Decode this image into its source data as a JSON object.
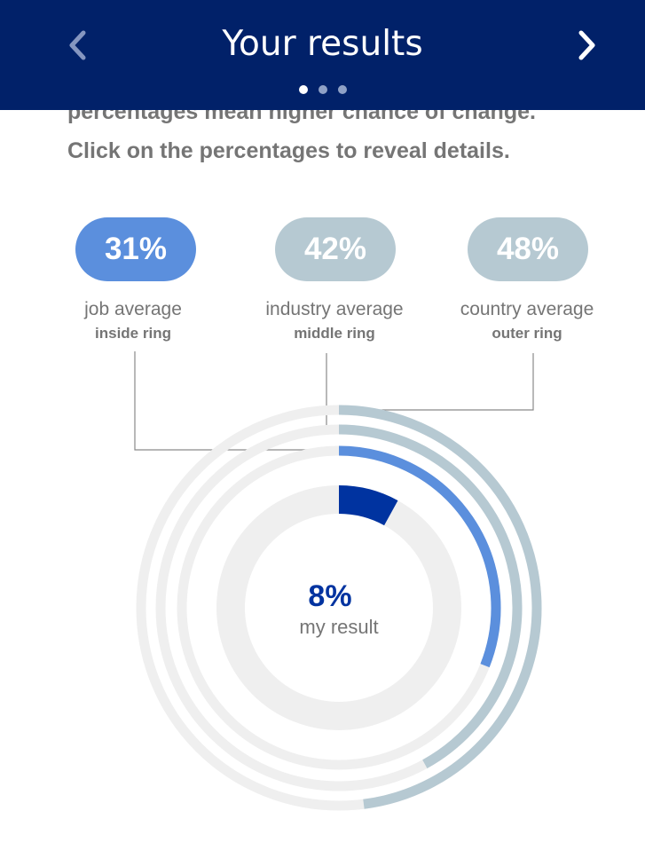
{
  "header": {
    "title": "Your results",
    "prev_icon": "chevron-left-icon",
    "next_icon": "chevron-right-icon",
    "pages": 3,
    "current_page": 1
  },
  "intro": {
    "line_partial": "percentages mean higher chance of change.",
    "line": "Click on the percentages to reveal details."
  },
  "averages": [
    {
      "value": "31%",
      "name": "job average",
      "ring": "inside ring",
      "color": "#5b8fdd"
    },
    {
      "value": "42%",
      "name": "industry average",
      "ring": "middle ring",
      "color": "#b6c9d2"
    },
    {
      "value": "48%",
      "name": "country average",
      "ring": "outer ring",
      "color": "#b6c9d2"
    }
  ],
  "result": {
    "value": "8%",
    "label": "my result",
    "color": "#0033a0"
  },
  "chart_data": {
    "type": "radial-progress",
    "rings": [
      {
        "name": "my result",
        "value": 8,
        "color": "#0033a0"
      },
      {
        "name": "job average",
        "value": 31,
        "color": "#5b8fdd"
      },
      {
        "name": "industry average",
        "value": 42,
        "color": "#b6c9d2"
      },
      {
        "name": "country average",
        "value": 48,
        "color": "#b6c9d2"
      }
    ],
    "track_color": "#efefef",
    "max": 100
  },
  "colors": {
    "header_bg": "#012169",
    "connector": "#8a8a8a",
    "text_grey": "#757575"
  }
}
